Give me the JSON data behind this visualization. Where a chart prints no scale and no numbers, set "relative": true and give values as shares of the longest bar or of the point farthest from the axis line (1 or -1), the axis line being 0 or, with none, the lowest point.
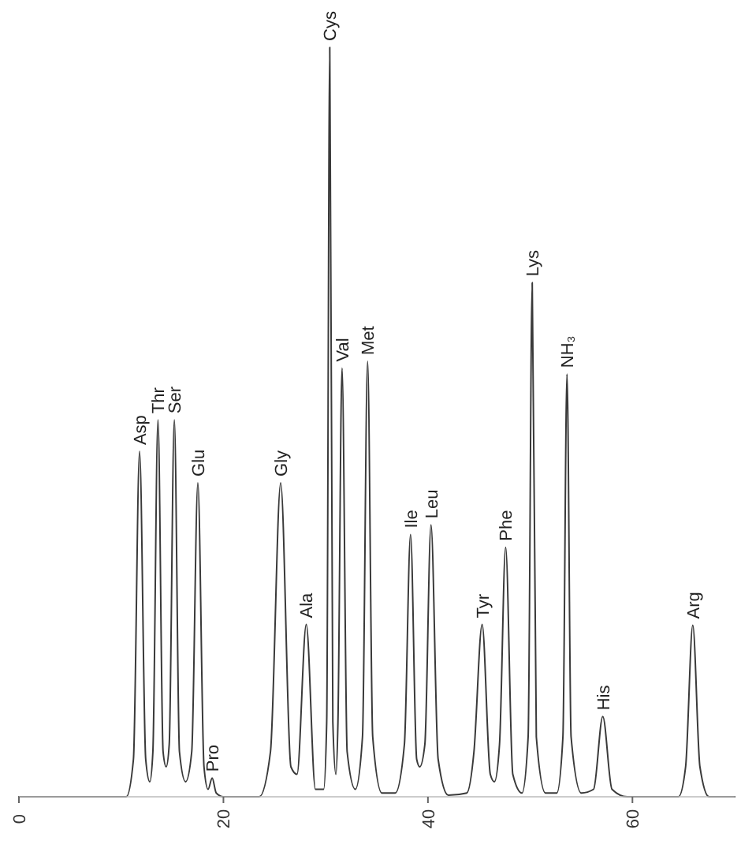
{
  "chart_data": {
    "type": "line",
    "relative": true,
    "color": "#3a3a3a",
    "x": [
      0,
      10.5,
      11.2,
      11.8,
      12.4,
      12.8,
      13.1,
      13.6,
      14.1,
      14.4,
      14.7,
      15.2,
      15.7,
      16.3,
      16.9,
      17.5,
      18.1,
      18.5,
      18.9,
      19.3,
      20,
      23.5,
      24.6,
      25.6,
      26.6,
      27.2,
      28.1,
      29,
      29.8,
      30.1,
      30.4,
      30.7,
      31.0,
      31.2,
      31.6,
      32.1,
      32.9,
      33.6,
      34.1,
      34.6,
      35.5,
      36.8,
      37.7,
      38.3,
      38.9,
      39.2,
      39.7,
      40.3,
      41.0,
      42,
      43.8,
      44.5,
      45.3,
      46.1,
      46.5,
      47.0,
      47.6,
      48.3,
      49.2,
      49.8,
      50.2,
      50.6,
      51.5,
      52.6,
      53.2,
      53.6,
      54.0,
      55.0,
      56.2,
      57.1,
      58,
      59.5,
      64.5,
      65.2,
      65.9,
      66.6,
      67.5,
      70
    ],
    "values": [
      0,
      0,
      0.05,
      0.461,
      0.05,
      0.02,
      0.06,
      0.503,
      0.06,
      0.04,
      0.07,
      0.503,
      0.06,
      0.02,
      0.06,
      0.419,
      0.04,
      0.01,
      0.025,
      0.005,
      0,
      0,
      0.06,
      0.419,
      0.04,
      0.03,
      0.23,
      0.01,
      0.01,
      0.1,
      1.0,
      0.1,
      0.03,
      0.1,
      0.572,
      0.06,
      0.01,
      0.08,
      0.581,
      0.08,
      0.005,
      0.005,
      0.07,
      0.35,
      0.05,
      0.04,
      0.07,
      0.363,
      0.05,
      0.002,
      0.005,
      0.06,
      0.23,
      0.03,
      0.02,
      0.07,
      0.333,
      0.03,
      0.005,
      0.08,
      0.686,
      0.08,
      0.005,
      0.005,
      0.08,
      0.564,
      0.08,
      0.005,
      0.01,
      0.107,
      0.01,
      0,
      0,
      0.04,
      0.229,
      0.04,
      0,
      0
    ],
    "xlim": [
      0,
      70
    ],
    "xticks": [
      0,
      20,
      40,
      60
    ],
    "annotations": [
      {
        "text": "Asp",
        "x": 11.8,
        "y": 0.461
      },
      {
        "text": "Thr",
        "x": 13.6,
        "y": 0.503
      },
      {
        "text": "Ser",
        "x": 15.2,
        "y": 0.503
      },
      {
        "text": "Glu",
        "x": 17.5,
        "y": 0.419
      },
      {
        "text": "Pro",
        "x": 18.9,
        "y": 0.025
      },
      {
        "text": "Gly",
        "x": 25.6,
        "y": 0.419
      },
      {
        "text": "Ala",
        "x": 28.1,
        "y": 0.23
      },
      {
        "text": "Cys",
        "x": 30.4,
        "y": 1.0
      },
      {
        "text": "Val",
        "x": 31.6,
        "y": 0.572
      },
      {
        "text": "Met",
        "x": 34.1,
        "y": 0.581
      },
      {
        "text": "Ile",
        "x": 38.3,
        "y": 0.35
      },
      {
        "text": "Leu",
        "x": 40.3,
        "y": 0.363
      },
      {
        "text": "Tyr",
        "x": 45.3,
        "y": 0.23
      },
      {
        "text": "Phe",
        "x": 47.6,
        "y": 0.333
      },
      {
        "text": "Lys",
        "x": 50.2,
        "y": 0.686
      },
      {
        "text": "NH₃",
        "x": 53.6,
        "y": 0.564
      },
      {
        "text": "His",
        "x": 57.1,
        "y": 0.107
      },
      {
        "text": "Arg",
        "x": 65.9,
        "y": 0.229
      }
    ]
  }
}
